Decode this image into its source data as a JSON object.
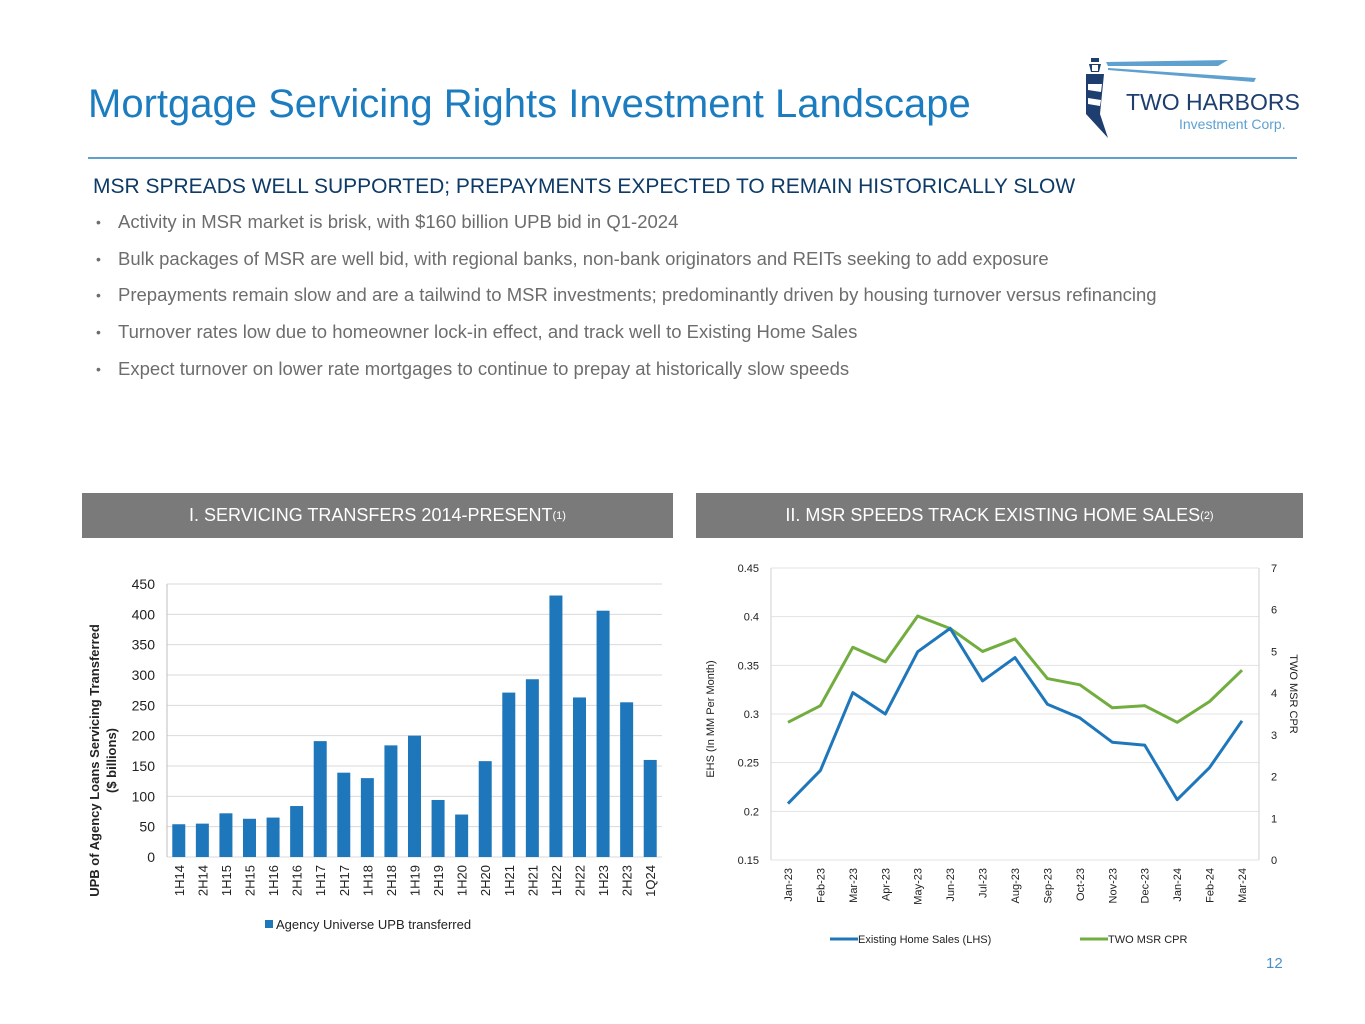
{
  "title": "Mortgage Servicing Rights Investment Landscape",
  "logo": {
    "name": "TWO HARBORS",
    "sub": "Investment Corp."
  },
  "subheading": "MSR SPREADS WELL SUPPORTED; PREPAYMENTS EXPECTED TO REMAIN HISTORICALLY SLOW",
  "bullets": [
    "Activity in MSR market is brisk, with $160 billion UPB bid in Q1-2024",
    "Bulk packages of MSR are well bid, with regional banks, non-bank originators and REITs seeking to add exposure",
    "Prepayments remain slow and are a tailwind to MSR investments; predominantly driven by housing turnover versus refinancing",
    "Turnover rates low due to homeowner lock-in effect, and track well to Existing Home Sales",
    "Expect turnover on lower rate mortgages to continue to prepay at historically slow speeds"
  ],
  "panel1": {
    "title": "I. SERVICING TRANSFERS 2014-PRESENT",
    "note": "(1)"
  },
  "panel2": {
    "title": "II. MSR SPEEDS TRACK EXISTING HOME SALES",
    "note": "(2)"
  },
  "page_number": "12",
  "colors": {
    "bar": "#1f77bb",
    "line_ehs": "#1f77bb",
    "line_cpr": "#72ad3f",
    "header_bg": "#7a7a7a"
  },
  "chart_data": [
    {
      "type": "bar",
      "categories": [
        "1H14",
        "2H14",
        "1H15",
        "2H15",
        "1H16",
        "2H16",
        "1H17",
        "2H17",
        "1H18",
        "2H18",
        "1H19",
        "2H19",
        "1H20",
        "2H20",
        "1H21",
        "2H21",
        "1H22",
        "2H22",
        "1H23",
        "2H23",
        "1Q24"
      ],
      "values": [
        54,
        55,
        72,
        63,
        65,
        84,
        191,
        139,
        130,
        184,
        200,
        94,
        70,
        158,
        271,
        293,
        431,
        263,
        406,
        255,
        160
      ],
      "ylabel": "UPB of Agency Loans Servicing Transferred ($ billions)",
      "ylabel_lines": [
        "UPB of Agency Loans Servicing Transferred",
        "($ billions)"
      ],
      "ylim": [
        0,
        450
      ],
      "yticks": [
        "0",
        "50",
        "100",
        "150",
        "200",
        "250",
        "300",
        "350",
        "400",
        "450"
      ],
      "legend": "Agency Universe UPB transferred",
      "grid": true
    },
    {
      "type": "line",
      "categories": [
        "Jan-23",
        "Feb-23",
        "Mar-23",
        "Apr-23",
        "May-23",
        "Jun-23",
        "Jul-23",
        "Aug-23",
        "Sep-23",
        "Oct-23",
        "Nov-23",
        "Dec-23",
        "Jan-24",
        "Feb-24",
        "Mar-24"
      ],
      "series": [
        {
          "name": "Existing Home Sales (LHS)",
          "axis": "left",
          "values": [
            0.208,
            0.242,
            0.322,
            0.3,
            0.364,
            0.388,
            0.334,
            0.358,
            0.31,
            0.296,
            0.271,
            0.268,
            0.212,
            0.245,
            0.293
          ]
        },
        {
          "name": "TWO MSR CPR",
          "axis": "right",
          "values": [
            3.3,
            3.7,
            5.1,
            4.75,
            5.85,
            5.55,
            5.0,
            5.3,
            4.35,
            4.2,
            3.65,
            3.7,
            3.3,
            3.8,
            4.55
          ]
        }
      ],
      "ylabel_left": "EHS (In MM Per Month)",
      "ylabel_right": "TWO MSR CPR",
      "ylim_left": [
        0.15,
        0.45
      ],
      "yticks_left": [
        "0.15",
        "0.2",
        "0.25",
        "0.3",
        "0.35",
        "0.4",
        "0.45"
      ],
      "ylim_right": [
        0,
        7
      ],
      "yticks_right": [
        "0",
        "1",
        "2",
        "3",
        "4",
        "5",
        "6",
        "7"
      ],
      "grid": true
    }
  ]
}
